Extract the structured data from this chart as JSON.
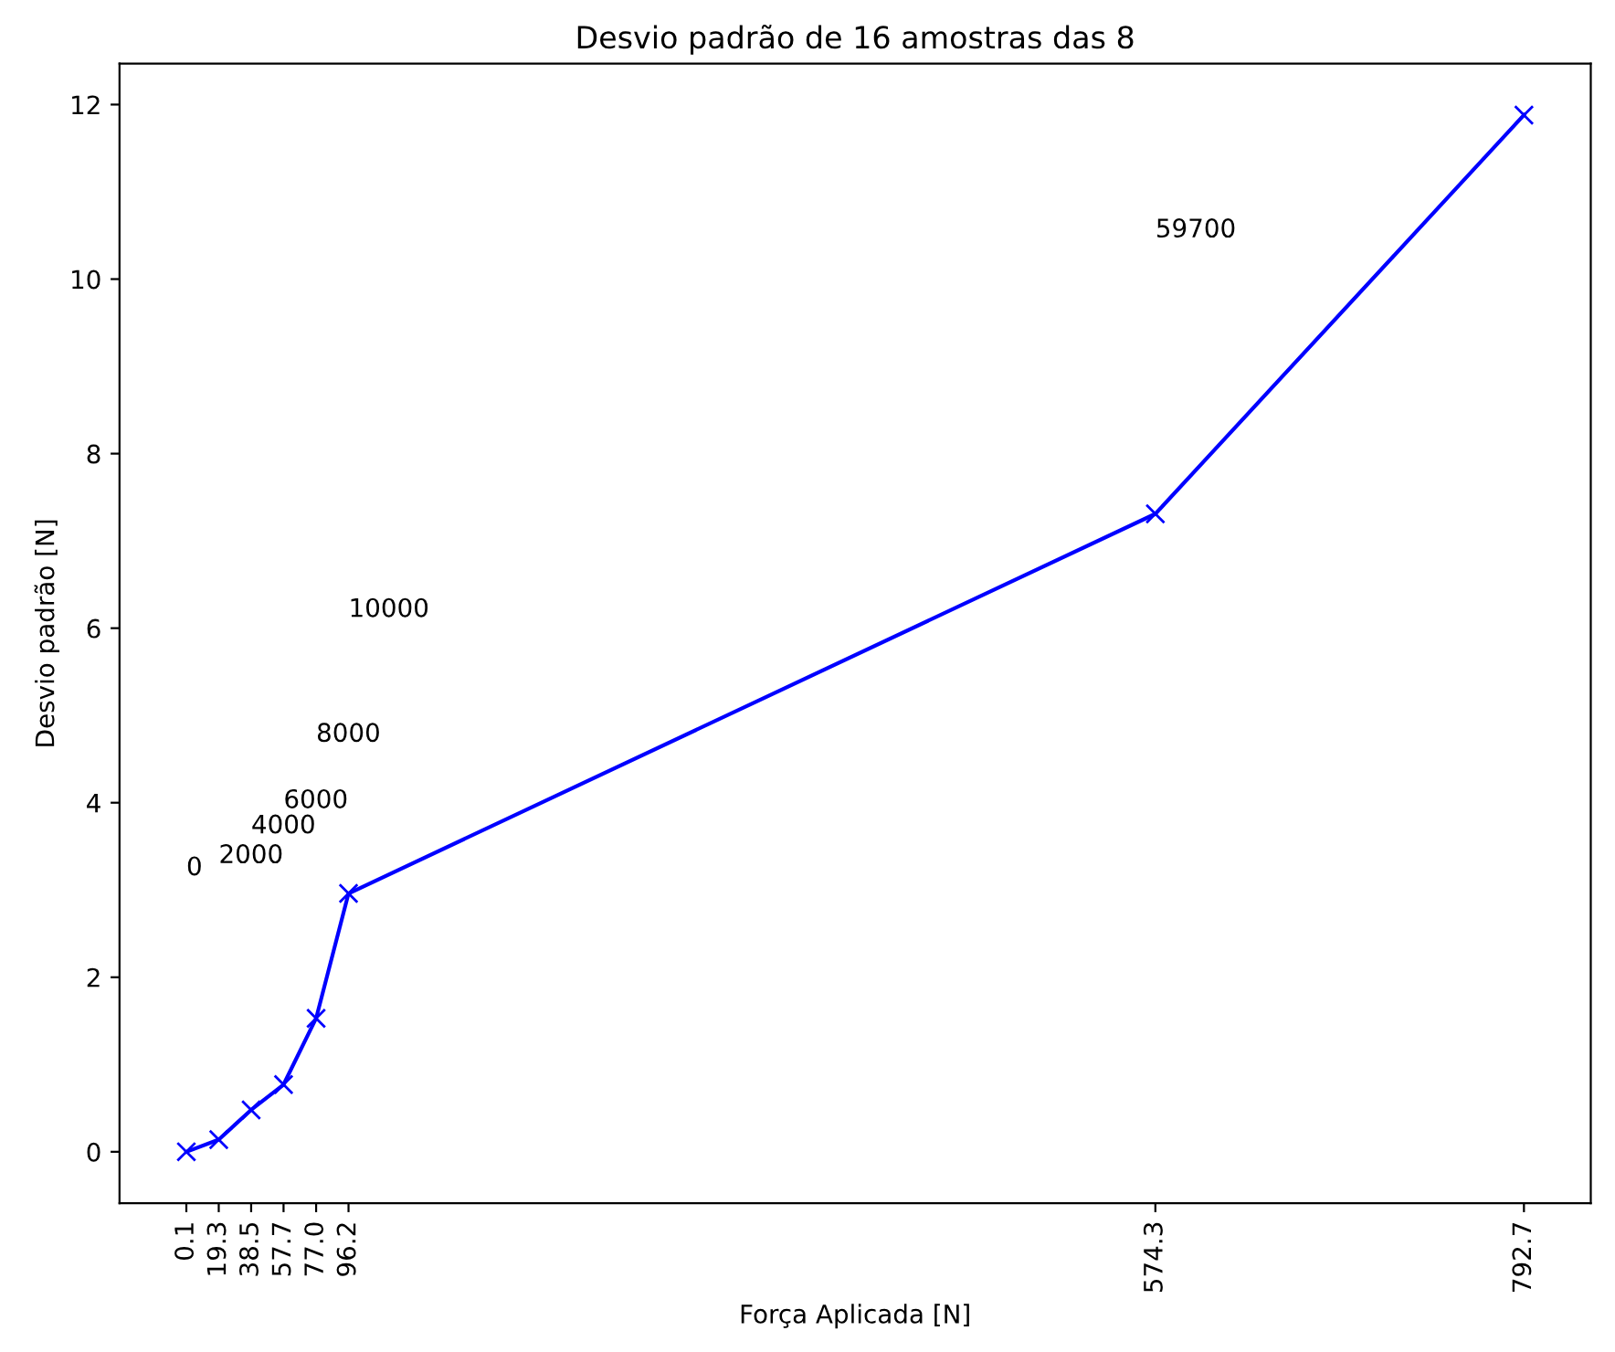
{
  "chart_data": {
    "type": "line",
    "title": "Desvio padrão de 16 amostras das 8",
    "xlabel": "Força Aplicada [N]",
    "ylabel": "Desvio padrão [N]",
    "x": [
      0.1,
      19.3,
      38.5,
      57.7,
      77.0,
      96.2,
      574.3,
      792.7
    ],
    "series": [
      {
        "color": "#0000ff",
        "values": [
          0.0,
          0.14,
          0.48,
          0.77,
          1.53,
          2.96,
          7.31,
          11.88
        ]
      }
    ],
    "marker": "cross",
    "line_style": "solid",
    "grid": false,
    "legend": false,
    "xlim": [
      -39.5,
      832.3
    ],
    "ylim": [
      -0.59,
      12.47
    ],
    "xticks": [
      0.1,
      19.3,
      38.5,
      57.7,
      {
        "value": 77.0,
        "label": "77.0"
      },
      96.2,
      574.3,
      792.7
    ],
    "yticks": [
      0,
      2,
      4,
      6,
      8,
      10,
      12
    ],
    "annotations": [
      "0",
      "2000",
      "4000",
      "6000",
      "8000",
      "10000",
      "59700"
    ]
  }
}
